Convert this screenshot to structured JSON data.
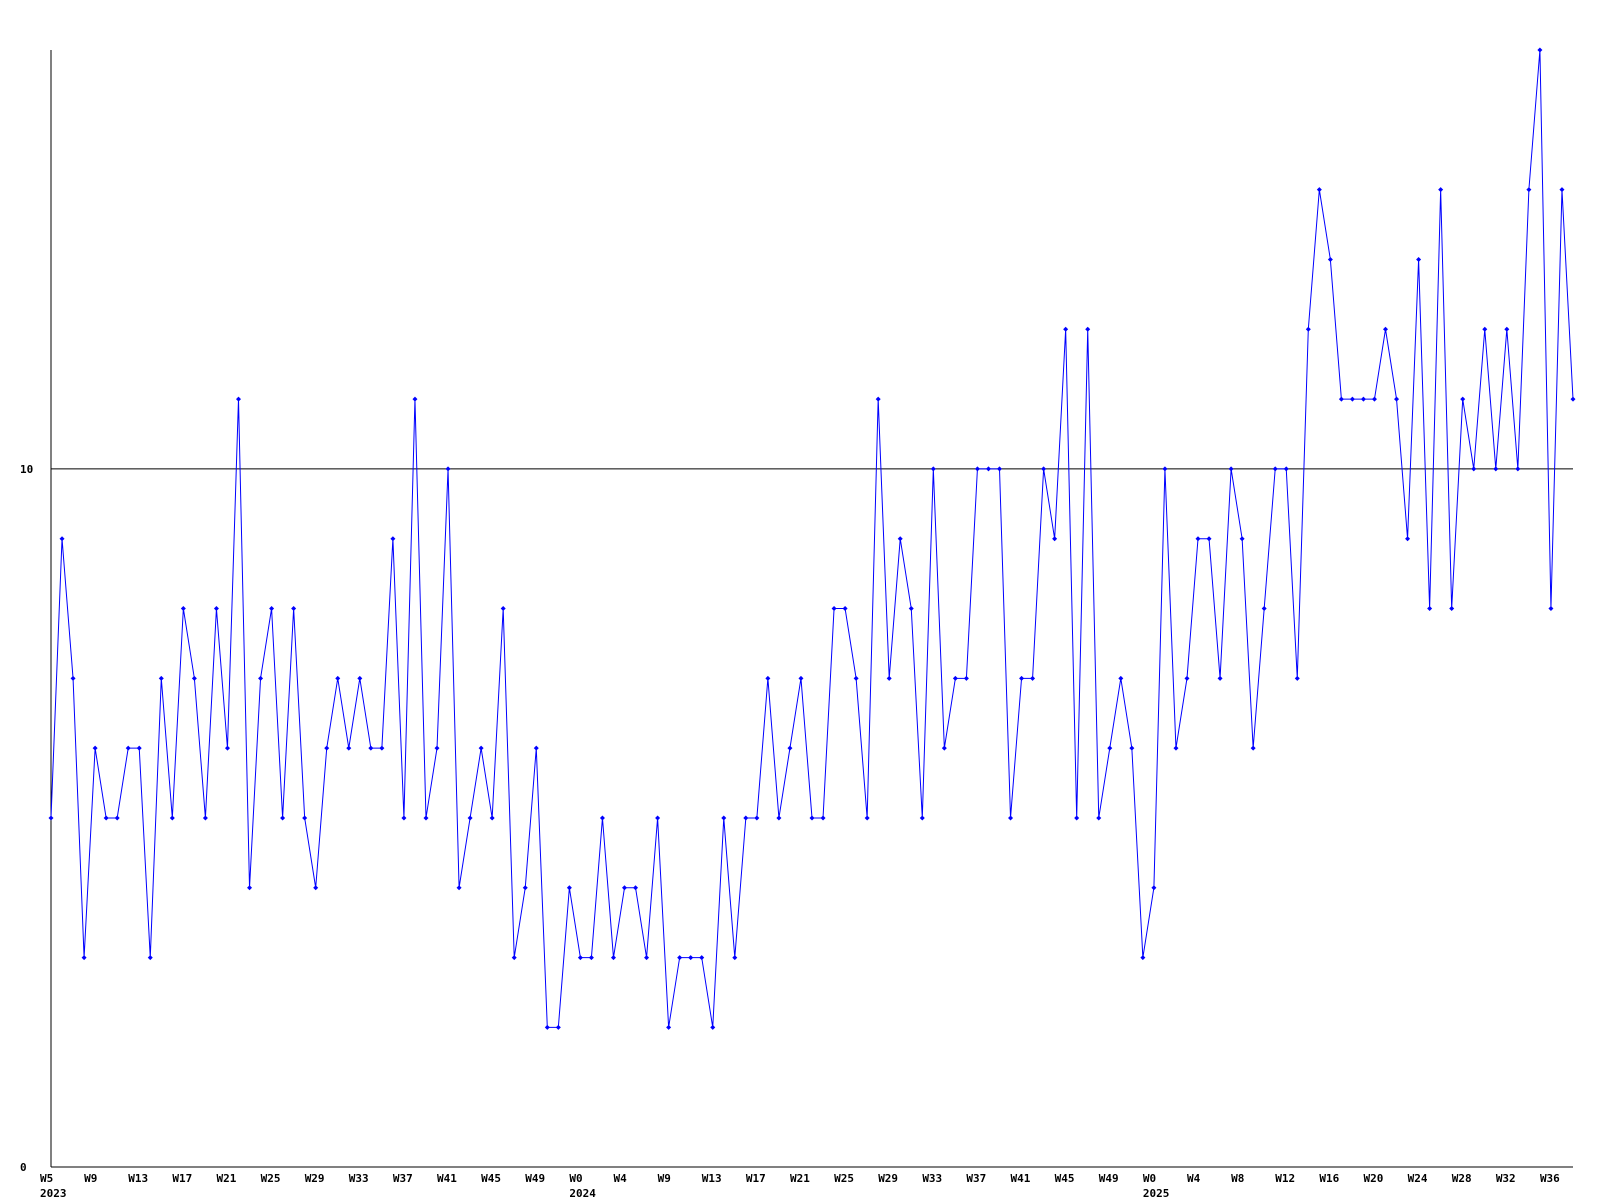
{
  "chart_data": {
    "type": "line",
    "color": "#0000ff",
    "ylim": [
      0,
      16
    ],
    "yticks": [
      0,
      10
    ],
    "grid": true,
    "categories": [
      "W5",
      null,
      null,
      null,
      "W9",
      null,
      null,
      null,
      "W13",
      null,
      null,
      null,
      "W17",
      null,
      null,
      null,
      "W21",
      null,
      null,
      null,
      "W25",
      null,
      null,
      null,
      "W29",
      null,
      null,
      null,
      "W33",
      null,
      null,
      null,
      "W37",
      null,
      null,
      null,
      "W41",
      null,
      null,
      null,
      "W45",
      null,
      null,
      null,
      "W49",
      null,
      null,
      null,
      "W0",
      null,
      null,
      null,
      "W4",
      null,
      null,
      null,
      "W9",
      null,
      null,
      null,
      "W13",
      null,
      null,
      null,
      "W17",
      null,
      null,
      null,
      "W21",
      null,
      null,
      null,
      "W25",
      null,
      null,
      null,
      "W29",
      null,
      null,
      null,
      "W33",
      null,
      null,
      null,
      "W37",
      null,
      null,
      null,
      "W41",
      null,
      null,
      null,
      "W45",
      null,
      null,
      null,
      "W49",
      null,
      null,
      null,
      "W0",
      null,
      null,
      null,
      "W4",
      null,
      null,
      null,
      "W8",
      null,
      null,
      null,
      "W12",
      null,
      null,
      null,
      "W16",
      null,
      null,
      null,
      "W20",
      null,
      null,
      null,
      "W24",
      null,
      null,
      null,
      "W28",
      null,
      null,
      null,
      "W32",
      null,
      null,
      null,
      "W36",
      null,
      null
    ],
    "years": [
      "2023",
      null,
      null,
      null,
      null,
      null,
      null,
      null,
      null,
      null,
      null,
      null,
      null,
      null,
      null,
      null,
      null,
      null,
      null,
      null,
      null,
      null,
      null,
      null,
      null,
      null,
      null,
      null,
      null,
      null,
      null,
      null,
      null,
      null,
      null,
      null,
      null,
      null,
      null,
      null,
      null,
      null,
      null,
      null,
      null,
      null,
      null,
      null,
      "2024",
      null,
      null,
      null,
      null,
      null,
      null,
      null,
      null,
      null,
      null,
      null,
      null,
      null,
      null,
      null,
      null,
      null,
      null,
      null,
      null,
      null,
      null,
      null,
      null,
      null,
      null,
      null,
      null,
      null,
      null,
      null,
      null,
      null,
      null,
      null,
      null,
      null,
      null,
      null,
      null,
      null,
      null,
      null,
      null,
      null,
      null,
      null,
      null,
      null,
      null,
      null,
      "2025",
      null,
      null,
      null,
      null,
      null,
      null,
      null,
      null,
      null,
      null,
      null,
      null,
      null,
      null,
      null,
      null,
      null,
      null,
      null,
      null,
      null,
      null,
      null,
      null,
      null,
      null,
      null,
      null,
      null,
      null,
      null,
      null,
      null,
      null,
      null,
      null,
      null
    ],
    "values": [
      5,
      9,
      7,
      3,
      6,
      5,
      5,
      6,
      6,
      3,
      7,
      5,
      8,
      7,
      5,
      8,
      6,
      11,
      4,
      7,
      8,
      5,
      8,
      5,
      4,
      6,
      7,
      6,
      7,
      6,
      6,
      9,
      5,
      11,
      5,
      6,
      10,
      4,
      5,
      6,
      5,
      8,
      3,
      4,
      6,
      2,
      2,
      4,
      3,
      3,
      5,
      3,
      4,
      4,
      3,
      5,
      2,
      3,
      3,
      3,
      2,
      5,
      3,
      5,
      5,
      7,
      5,
      6,
      7,
      5,
      5,
      8,
      8,
      7,
      5,
      11,
      7,
      9,
      8,
      5,
      10,
      6,
      7,
      7,
      10,
      10,
      10,
      5,
      7,
      7,
      10,
      9,
      12,
      5,
      12,
      5,
      6,
      7,
      6,
      3,
      4,
      10,
      6,
      7,
      9,
      9,
      7,
      10,
      9,
      6,
      8,
      10,
      10,
      7,
      12,
      14,
      13,
      11,
      11,
      11,
      11,
      12,
      11,
      9,
      13,
      8,
      14,
      8,
      11,
      10,
      12,
      10,
      12,
      10,
      14,
      16,
      8,
      14,
      11
    ]
  }
}
